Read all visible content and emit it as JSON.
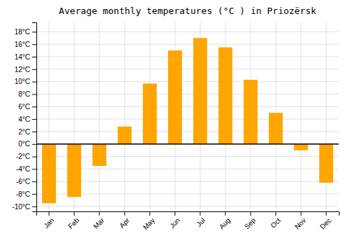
{
  "chart_data": {
    "type": "bar",
    "title": "Average monthly temperatures (°C ) in Priozërsk",
    "categories": [
      "Jan",
      "Feb",
      "Mar",
      "Apr",
      "May",
      "Jun",
      "Jul",
      "Aug",
      "Sep",
      "Oct",
      "Nov",
      "Dec"
    ],
    "values": [
      -9.5,
      -8.5,
      -3.5,
      2.8,
      9.7,
      15.0,
      17.0,
      15.5,
      10.3,
      5.0,
      -1.0,
      -6.2
    ],
    "color": "#FFA500",
    "ylim": [
      -10.8,
      19.5
    ],
    "yticks": [
      {
        "value": -10,
        "label": "-10°C"
      },
      {
        "value": -8,
        "label": "-8°C"
      },
      {
        "value": -6,
        "label": "-6°C"
      },
      {
        "value": -4,
        "label": "-4°C"
      },
      {
        "value": -2,
        "label": "-2°C"
      },
      {
        "value": 0,
        "label": "0°C"
      },
      {
        "value": 2,
        "label": "2°C"
      },
      {
        "value": 4,
        "label": "4°C"
      },
      {
        "value": 6,
        "label": "6°C"
      },
      {
        "value": 8,
        "label": "8°C"
      },
      {
        "value": 10,
        "label": "10°C"
      },
      {
        "value": 12,
        "label": "12°C"
      },
      {
        "value": 14,
        "label": "14°C"
      },
      {
        "value": 16,
        "label": "16°C"
      },
      {
        "value": 18,
        "label": "18°C"
      }
    ],
    "grid": true
  }
}
